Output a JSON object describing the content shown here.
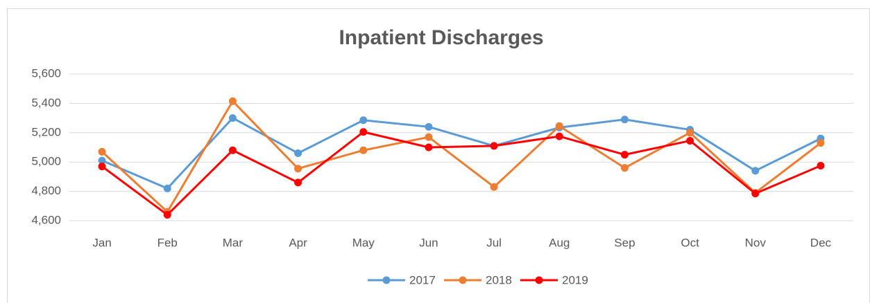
{
  "chart_data": {
    "type": "line",
    "title": "Inpatient Discharges",
    "categories": [
      "Jan",
      "Feb",
      "Mar",
      "Apr",
      "May",
      "Jun",
      "Jul",
      "Aug",
      "Sep",
      "Oct",
      "Nov",
      "Dec"
    ],
    "series": [
      {
        "name": "2017",
        "color": "#5b9bd5",
        "values": [
          5010,
          4820,
          5300,
          5060,
          5285,
          5240,
          5110,
          5235,
          5290,
          5220,
          4940,
          5160
        ]
      },
      {
        "name": "2018",
        "color": "#ed7d31",
        "values": [
          5070,
          4660,
          5415,
          4955,
          5080,
          5170,
          4830,
          5245,
          4960,
          5200,
          4790,
          5130
        ]
      },
      {
        "name": "2019",
        "color": "#ff0000",
        "values": [
          4970,
          4640,
          5080,
          4860,
          5205,
          5100,
          5110,
          5175,
          5050,
          5145,
          4785,
          4975
        ]
      }
    ],
    "ylim": [
      4600,
      5600
    ],
    "yticks": [
      {
        "value": 4600,
        "label": "4,600"
      },
      {
        "value": 4800,
        "label": "4,800"
      },
      {
        "value": 5000,
        "label": "5,000"
      },
      {
        "value": 5200,
        "label": "5,200"
      },
      {
        "value": 5400,
        "label": "5,400"
      },
      {
        "value": 5600,
        "label": "5,600"
      }
    ],
    "grid": true,
    "legend": "bottom"
  }
}
